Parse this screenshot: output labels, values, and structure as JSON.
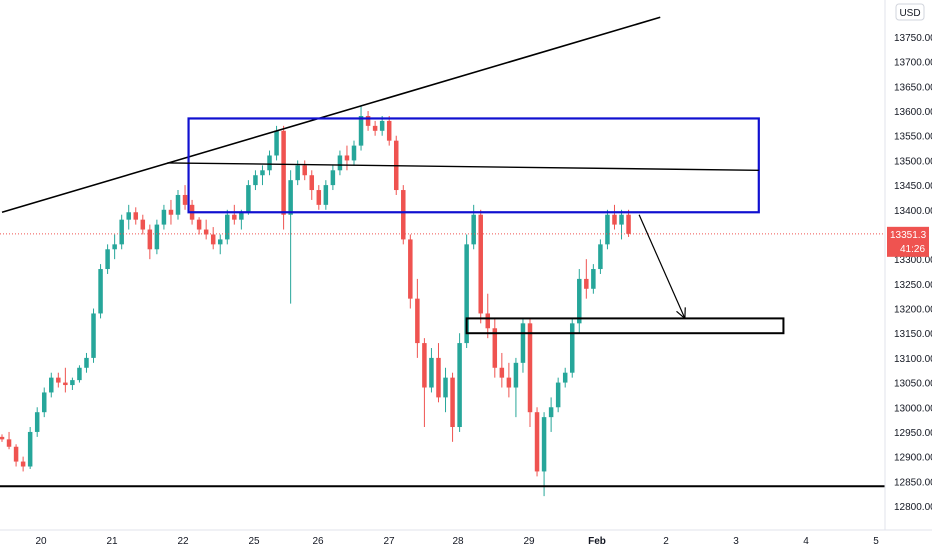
{
  "header": {
    "currency": "USD"
  },
  "price_label": "13351.3",
  "countdown_label": "41:26",
  "colors": {
    "up": "#26a69a",
    "down": "#ef5350",
    "box": "#1010d0",
    "line": "#000000",
    "price_line": "#ef5350",
    "axis_text": "#131722"
  },
  "chart_data": {
    "type": "candlestick",
    "ylim": [
      12770,
      13780
    ],
    "y_ticks": [
      12800,
      12850,
      12900,
      12950,
      13000,
      13050,
      13100,
      13150,
      13200,
      13250,
      13300,
      13400,
      13450,
      13500,
      13550,
      13600,
      13650,
      13700,
      13750
    ],
    "x_ticks": [
      "20",
      "21",
      "22",
      "25",
      "26",
      "27",
      "28",
      "29",
      "Feb",
      "2",
      "3",
      "4",
      "5"
    ],
    "last_price": 13351.3,
    "candles": [
      [
        12940,
        12945,
        12930,
        12935
      ],
      [
        12935,
        12950,
        12915,
        12920
      ],
      [
        12920,
        12925,
        12880,
        12890
      ],
      [
        12890,
        12900,
        12870,
        12880
      ],
      [
        12880,
        12960,
        12875,
        12950
      ],
      [
        12950,
        13000,
        12940,
        12990
      ],
      [
        12990,
        13040,
        12980,
        13030
      ],
      [
        13030,
        13070,
        13020,
        13060
      ],
      [
        13060,
        13070,
        13040,
        13050
      ],
      [
        13050,
        13080,
        13030,
        13045
      ],
      [
        13045,
        13060,
        13035,
        13055
      ],
      [
        13055,
        13085,
        13050,
        13080
      ],
      [
        13080,
        13110,
        13070,
        13100
      ],
      [
        13100,
        13200,
        13090,
        13190
      ],
      [
        13190,
        13290,
        13180,
        13280
      ],
      [
        13280,
        13330,
        13270,
        13320
      ],
      [
        13320,
        13350,
        13300,
        13330
      ],
      [
        13330,
        13390,
        13320,
        13380
      ],
      [
        13380,
        13410,
        13360,
        13395
      ],
      [
        13395,
        13405,
        13370,
        13380
      ],
      [
        13380,
        13390,
        13350,
        13360
      ],
      [
        13360,
        13370,
        13300,
        13320
      ],
      [
        13320,
        13380,
        13310,
        13370
      ],
      [
        13370,
        13410,
        13360,
        13400
      ],
      [
        13400,
        13420,
        13370,
        13390
      ],
      [
        13390,
        13440,
        13380,
        13430
      ],
      [
        13430,
        13450,
        13400,
        13410
      ],
      [
        13410,
        13420,
        13370,
        13380
      ],
      [
        13380,
        13385,
        13350,
        13360
      ],
      [
        13360,
        13380,
        13340,
        13350
      ],
      [
        13350,
        13365,
        13320,
        13330
      ],
      [
        13330,
        13350,
        13310,
        13340
      ],
      [
        13340,
        13400,
        13330,
        13390
      ],
      [
        13390,
        13410,
        13370,
        13380
      ],
      [
        13380,
        13400,
        13360,
        13395
      ],
      [
        13395,
        13460,
        13390,
        13450
      ],
      [
        13450,
        13480,
        13440,
        13470
      ],
      [
        13470,
        13490,
        13450,
        13480
      ],
      [
        13480,
        13520,
        13470,
        13510
      ],
      [
        13510,
        13570,
        13500,
        13560
      ],
      [
        13560,
        13570,
        13360,
        13390
      ],
      [
        13390,
        13480,
        13210,
        13460
      ],
      [
        13460,
        13500,
        13450,
        13490
      ],
      [
        13490,
        13500,
        13460,
        13470
      ],
      [
        13470,
        13480,
        13420,
        13440
      ],
      [
        13440,
        13450,
        13400,
        13410
      ],
      [
        13410,
        13460,
        13400,
        13450
      ],
      [
        13450,
        13490,
        13440,
        13480
      ],
      [
        13480,
        13520,
        13470,
        13510
      ],
      [
        13510,
        13530,
        13480,
        13500
      ],
      [
        13500,
        13540,
        13490,
        13530
      ],
      [
        13530,
        13610,
        13520,
        13590
      ],
      [
        13590,
        13600,
        13560,
        13570
      ],
      [
        13570,
        13580,
        13550,
        13560
      ],
      [
        13560,
        13590,
        13550,
        13580
      ],
      [
        13580,
        13590,
        13530,
        13540
      ],
      [
        13540,
        13550,
        13430,
        13440
      ],
      [
        13440,
        13450,
        13330,
        13340
      ],
      [
        13340,
        13350,
        13200,
        13220
      ],
      [
        13220,
        13260,
        13100,
        13130
      ],
      [
        13130,
        13140,
        12960,
        13040
      ],
      [
        13040,
        13120,
        13030,
        13100
      ],
      [
        13100,
        13130,
        13010,
        13020
      ],
      [
        13020,
        13080,
        12990,
        13060
      ],
      [
        13060,
        13070,
        12930,
        12960
      ],
      [
        12960,
        13150,
        12950,
        13130
      ],
      [
        13130,
        13350,
        13120,
        13330
      ],
      [
        13330,
        13410,
        13320,
        13390
      ],
      [
        13390,
        13400,
        13170,
        13190
      ],
      [
        13190,
        13230,
        13140,
        13160
      ],
      [
        13160,
        13180,
        13060,
        13080
      ],
      [
        13080,
        13110,
        13040,
        13060
      ],
      [
        13060,
        13090,
        13020,
        13040
      ],
      [
        13040,
        13100,
        12980,
        13090
      ],
      [
        13090,
        13180,
        13070,
        13170
      ],
      [
        13170,
        13180,
        12960,
        12990
      ],
      [
        12990,
        13000,
        12860,
        12870
      ],
      [
        12870,
        12990,
        12820,
        12980
      ],
      [
        12980,
        13020,
        12950,
        13000
      ],
      [
        13000,
        13060,
        12990,
        13050
      ],
      [
        13050,
        13080,
        13040,
        13070
      ],
      [
        13070,
        13180,
        13060,
        13170
      ],
      [
        13170,
        13280,
        13150,
        13260
      ],
      [
        13260,
        13300,
        13220,
        13240
      ],
      [
        13240,
        13290,
        13230,
        13280
      ],
      [
        13280,
        13340,
        13270,
        13330
      ],
      [
        13330,
        13400,
        13320,
        13390
      ],
      [
        13390,
        13410,
        13360,
        13370
      ],
      [
        13370,
        13400,
        13340,
        13390
      ],
      [
        13390,
        13400,
        13345,
        13351.3
      ]
    ]
  },
  "drawings": {
    "trendline_from": [
      0,
      13395
    ],
    "trendline_to": [
      93.5,
      13790
    ],
    "resistance_box": [
      [
        26.5,
        13585
      ],
      [
        107.5,
        13395
      ]
    ],
    "mid_line": [
      [
        23.5,
        13495
      ],
      [
        107.5,
        13480
      ]
    ],
    "support_box": [
      [
        66,
        13180
      ],
      [
        111,
        13150
      ]
    ],
    "bottom_line": [
      [
        0,
        12840
      ],
      [
        111,
        12840
      ]
    ],
    "arrow_from": [
      90.5,
      13390
    ],
    "arrow_to": [
      97,
      13180
    ]
  }
}
